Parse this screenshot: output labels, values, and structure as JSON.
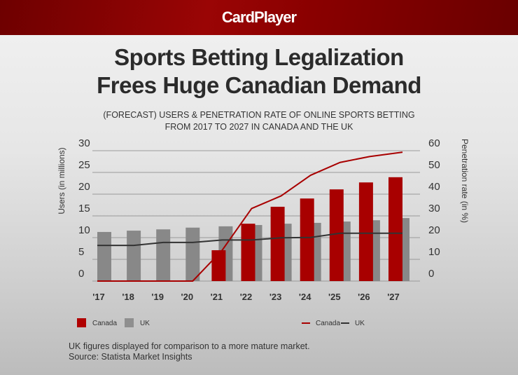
{
  "header": {
    "logo": "CardPlayer"
  },
  "title_line1": "Sports Betting Legalization",
  "title_line2": "Frees Huge Canadian Demand",
  "subtitle_line1": "(FORECAST) USERS & PENETRATION RATE OF ONLINE SPORTS BETTING",
  "subtitle_line2": "FROM 2017 TO 2027 IN CANADA AND THE UK",
  "footnote": "UK figures displayed for comparison to a more mature market.",
  "source": "Source: Statista Market Insights",
  "colors": {
    "canada": "#a80000",
    "uk": "#888888",
    "uk_line": "#333333",
    "grid": "#9a9a9a"
  },
  "chart_data": {
    "type": "bar+line",
    "categories": [
      "'17",
      "'18",
      "'19",
      "'20",
      "'21",
      "'22",
      "'23",
      "'24",
      "'25",
      "'26",
      "'27"
    ],
    "ylabel": "Users (in millions)",
    "y2label": "Penetration rate (in %)",
    "ylim": [
      0,
      30
    ],
    "y2lim": [
      0,
      60
    ],
    "yticks": [
      "0",
      "5",
      "10",
      "15",
      "20",
      "25",
      "30"
    ],
    "y2ticks": [
      "0",
      "10",
      "20",
      "30",
      "40",
      "50",
      "60"
    ],
    "grid": true,
    "bar_series": [
      {
        "name": "Canada",
        "values": [
          null,
          null,
          null,
          null,
          7.1,
          13.2,
          17.1,
          19.0,
          21.1,
          22.7,
          23.9
        ]
      },
      {
        "name": "UK",
        "values": [
          11.3,
          11.6,
          11.9,
          12.3,
          12.6,
          12.9,
          13.2,
          13.4,
          13.7,
          14.0,
          14.5
        ]
      }
    ],
    "line_series": [
      {
        "name": "Canada",
        "values": [
          0,
          0,
          0,
          0,
          14.2,
          33.4,
          39.2,
          48.7,
          54.6,
          57.3,
          59.3
        ]
      },
      {
        "name": "UK",
        "values": [
          16.4,
          16.4,
          17.8,
          17.8,
          18.9,
          18.9,
          19.9,
          20.1,
          22.0,
          22.0,
          22.0
        ]
      }
    ],
    "legend": {
      "bars": [
        "Canada",
        "UK"
      ],
      "lines": [
        "Canada",
        "UK"
      ],
      "placement": "bottom"
    }
  }
}
